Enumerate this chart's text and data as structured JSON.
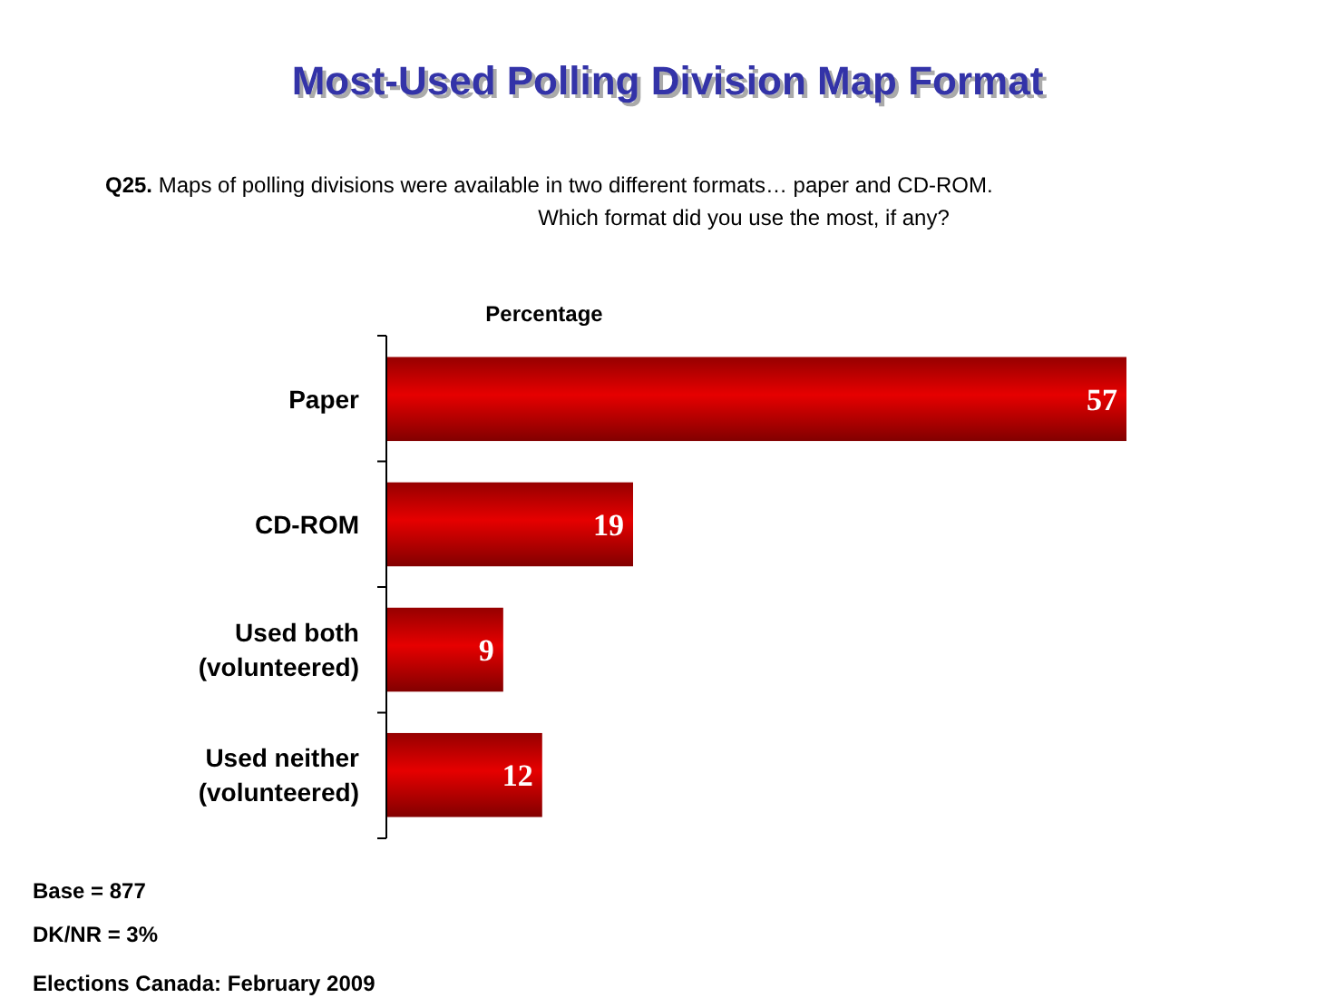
{
  "chart_data": {
    "type": "bar",
    "orientation": "horizontal",
    "title": "Most-Used Polling Division Map Format",
    "subtitle": "Q25. Maps of polling divisions were available in two different formats… paper and CD-ROM. Which format did you use the most, if any?",
    "xlabel": "Percentage",
    "categories": [
      "Paper",
      "CD-ROM",
      "Used both (volunteered)",
      "Used neither (volunteered)"
    ],
    "values": [
      57,
      19,
      9,
      12
    ],
    "color": "#e60000",
    "data_labels": true,
    "tick_labels": "y",
    "annotations": [
      "Base = 877",
      "DK/NR = 3%",
      "Elections Canada: February 2009"
    ]
  }
}
